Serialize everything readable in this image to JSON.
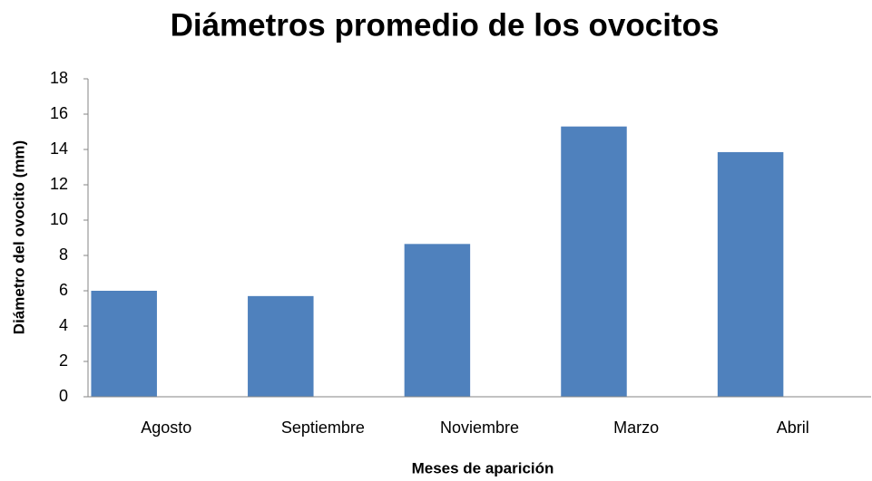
{
  "chart_data": {
    "type": "bar",
    "title": "Diámetros promedio de los ovocitos",
    "x_label": "Meses de aparición",
    "y_label": "Diámetro del ovocito (mm)",
    "categories": [
      "Agosto",
      "Septiembre",
      "Noviembre",
      "Marzo",
      "Abril"
    ],
    "values": [
      6.0,
      5.7,
      8.65,
      15.3,
      13.85
    ],
    "color": "#4f81bd",
    "ylim": [
      0,
      18
    ],
    "yticks": [
      0,
      2,
      4,
      6,
      8,
      10,
      12,
      14,
      16,
      18
    ],
    "grid": false
  }
}
